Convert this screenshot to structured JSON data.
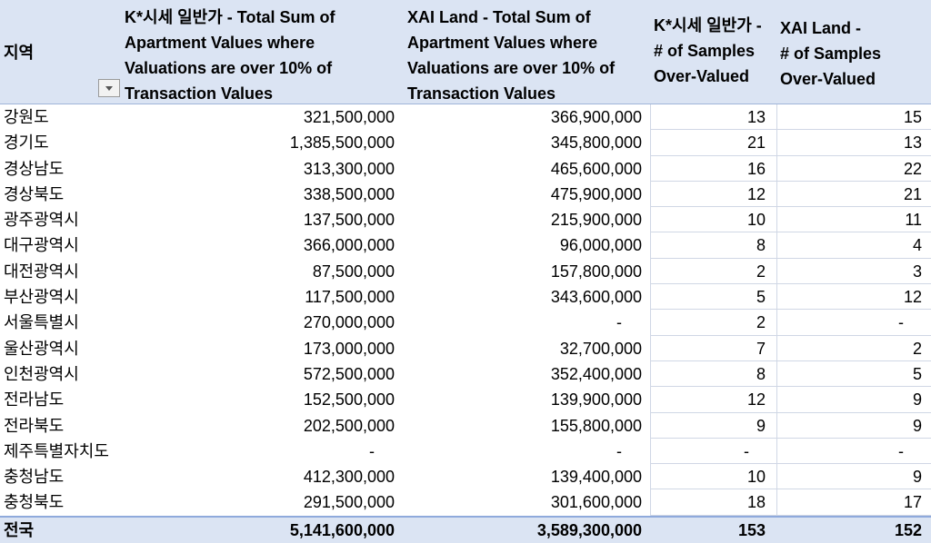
{
  "header": {
    "region": "지역",
    "col1": "K*시세 일반가 - Total Sum of\nApartment Values where\nValuations are over 10% of\nTransaction Values",
    "col2": "XAI Land - Total Sum of\nApartment Values where\nValuations are over 10% of\nTransaction Values",
    "col3": "K*시세 일반가 -\n# of Samples\nOver-Valued",
    "col4": "XAI Land -\n# of Samples\nOver-Valued"
  },
  "rows": [
    {
      "region": "강원도",
      "k_sum": "321,500,000",
      "xai_sum": "366,900,000",
      "k_n": "13",
      "xai_n": "15"
    },
    {
      "region": "경기도",
      "k_sum": "1,385,500,000",
      "xai_sum": "345,800,000",
      "k_n": "21",
      "xai_n": "13"
    },
    {
      "region": "경상남도",
      "k_sum": "313,300,000",
      "xai_sum": "465,600,000",
      "k_n": "16",
      "xai_n": "22"
    },
    {
      "region": "경상북도",
      "k_sum": "338,500,000",
      "xai_sum": "475,900,000",
      "k_n": "12",
      "xai_n": "21"
    },
    {
      "region": "광주광역시",
      "k_sum": "137,500,000",
      "xai_sum": "215,900,000",
      "k_n": "10",
      "xai_n": "11"
    },
    {
      "region": "대구광역시",
      "k_sum": "366,000,000",
      "xai_sum": "96,000,000",
      "k_n": "8",
      "xai_n": "4"
    },
    {
      "region": "대전광역시",
      "k_sum": "87,500,000",
      "xai_sum": "157,800,000",
      "k_n": "2",
      "xai_n": "3"
    },
    {
      "region": "부산광역시",
      "k_sum": "117,500,000",
      "xai_sum": "343,600,000",
      "k_n": "5",
      "xai_n": "12"
    },
    {
      "region": "서울특별시",
      "k_sum": "270,000,000",
      "xai_sum": "-",
      "k_n": "2",
      "xai_n": "-"
    },
    {
      "region": "울산광역시",
      "k_sum": "173,000,000",
      "xai_sum": "32,700,000",
      "k_n": "7",
      "xai_n": "2"
    },
    {
      "region": "인천광역시",
      "k_sum": "572,500,000",
      "xai_sum": "352,400,000",
      "k_n": "8",
      "xai_n": "5"
    },
    {
      "region": "전라남도",
      "k_sum": "152,500,000",
      "xai_sum": "139,900,000",
      "k_n": "12",
      "xai_n": "9"
    },
    {
      "region": "전라북도",
      "k_sum": "202,500,000",
      "xai_sum": "155,800,000",
      "k_n": "9",
      "xai_n": "9"
    },
    {
      "region": "제주특별자치도",
      "k_sum": "-",
      "xai_sum": "-",
      "k_n": "-",
      "xai_n": "-"
    },
    {
      "region": "충청남도",
      "k_sum": "412,300,000",
      "xai_sum": "139,400,000",
      "k_n": "10",
      "xai_n": "9"
    },
    {
      "region": "충청북도",
      "k_sum": "291,500,000",
      "xai_sum": "301,600,000",
      "k_n": "18",
      "xai_n": "17"
    }
  ],
  "total": {
    "region": "전국",
    "k_sum": "5,141,600,000",
    "xai_sum": "3,589,300,000",
    "k_n": "153",
    "xai_n": "152"
  },
  "icons": {
    "filter": "filter-dropdown-icon"
  },
  "colors": {
    "header_bg": "#dbe4f3",
    "total_border": "#8faadc"
  }
}
